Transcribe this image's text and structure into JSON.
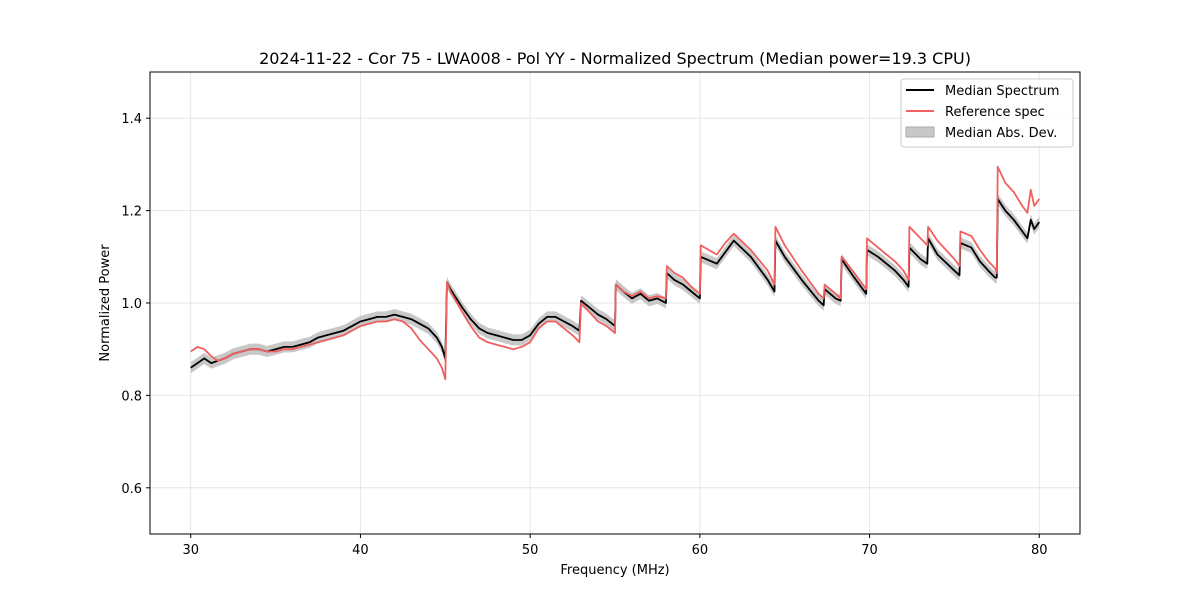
{
  "chart_data": {
    "type": "line",
    "title": "2024-11-22 - Cor 75 - LWA008 - Pol YY - Normalized Spectrum (Median power=19.3 CPU)",
    "xlabel": "Frequency (MHz)",
    "ylabel": "Normalized Power",
    "xlim": [
      27.6,
      82.4
    ],
    "ylim": [
      0.5,
      1.5
    ],
    "xticks": [
      30,
      40,
      50,
      60,
      70,
      80
    ],
    "yticks": [
      0.6,
      0.8,
      1.0,
      1.2,
      1.4
    ],
    "xtick_labels": [
      "30",
      "40",
      "50",
      "60",
      "70",
      "80"
    ],
    "ytick_labels": [
      "0.6",
      "0.8",
      "1.0",
      "1.2",
      "1.4"
    ],
    "grid": true,
    "legend_position": "top-right",
    "legend": {
      "median": "Median Spectrum",
      "reference": "Reference spec",
      "mad": "Median Abs. Dev."
    },
    "colors": {
      "median": "#000000",
      "reference": "#f06060",
      "mad_fill": "#c8c8c8",
      "grid": "#e6e6e6"
    },
    "series": [
      {
        "name": "Median Spectrum",
        "x": [
          30.0,
          30.4,
          30.8,
          31.2,
          31.6,
          32.0,
          32.5,
          33.0,
          33.5,
          34.0,
          34.5,
          35.0,
          35.5,
          36.0,
          36.5,
          37.0,
          37.5,
          38.0,
          38.5,
          39.0,
          39.5,
          40.0,
          40.5,
          41.0,
          41.5,
          42.0,
          42.5,
          43.0,
          43.5,
          44.0,
          44.5,
          44.8,
          45.0,
          45.1,
          45.3,
          46.0,
          46.5,
          47.0,
          47.5,
          48.0,
          48.5,
          49.0,
          49.5,
          50.0,
          50.5,
          51.0,
          51.5,
          52.0,
          52.5,
          52.9,
          53.0,
          53.5,
          54.0,
          54.5,
          55.0,
          55.05,
          55.5,
          56.0,
          56.5,
          57.0,
          57.5,
          58.0,
          58.05,
          58.5,
          59.0,
          59.5,
          60.0,
          60.05,
          61.0,
          61.5,
          62.0,
          63.0,
          64.0,
          64.4,
          64.45,
          65.0,
          66.0,
          67.0,
          67.3,
          67.35,
          68.0,
          68.3,
          68.35,
          69.0,
          69.8,
          69.85,
          70.5,
          71.0,
          71.5,
          72.0,
          72.3,
          72.35,
          73.0,
          73.4,
          73.45,
          74.0,
          75.0,
          75.3,
          75.35,
          76.0,
          76.5,
          77.0,
          77.4,
          77.5,
          77.55,
          78.0,
          78.5,
          79.0,
          79.3,
          79.5,
          79.7,
          80.0
        ],
        "values": [
          0.86,
          0.87,
          0.88,
          0.87,
          0.875,
          0.88,
          0.89,
          0.895,
          0.9,
          0.9,
          0.895,
          0.9,
          0.905,
          0.905,
          0.91,
          0.915,
          0.925,
          0.93,
          0.935,
          0.94,
          0.95,
          0.96,
          0.965,
          0.97,
          0.97,
          0.975,
          0.97,
          0.965,
          0.955,
          0.945,
          0.925,
          0.905,
          0.88,
          1.045,
          1.03,
          0.99,
          0.965,
          0.945,
          0.935,
          0.93,
          0.925,
          0.92,
          0.92,
          0.93,
          0.955,
          0.97,
          0.97,
          0.96,
          0.95,
          0.94,
          1.005,
          0.99,
          0.975,
          0.965,
          0.95,
          1.04,
          1.025,
          1.01,
          1.02,
          1.005,
          1.01,
          1.0,
          1.065,
          1.05,
          1.04,
          1.025,
          1.01,
          1.1,
          1.085,
          1.11,
          1.135,
          1.1,
          1.05,
          1.025,
          1.135,
          1.1,
          1.05,
          1.005,
          0.995,
          1.03,
          1.01,
          1.005,
          1.095,
          1.06,
          1.02,
          1.115,
          1.1,
          1.085,
          1.07,
          1.05,
          1.035,
          1.12,
          1.095,
          1.085,
          1.14,
          1.105,
          1.07,
          1.06,
          1.13,
          1.12,
          1.09,
          1.07,
          1.055,
          1.055,
          1.225,
          1.2,
          1.18,
          1.155,
          1.14,
          1.18,
          1.16,
          1.175
        ],
        "mad": 0.012
      },
      {
        "name": "Reference spec",
        "x": [
          30.0,
          30.4,
          30.8,
          31.2,
          31.6,
          32.0,
          32.5,
          33.0,
          33.5,
          34.0,
          34.5,
          35.0,
          35.5,
          36.0,
          36.5,
          37.0,
          37.5,
          38.0,
          38.5,
          39.0,
          39.5,
          40.0,
          40.5,
          41.0,
          41.5,
          42.0,
          42.5,
          43.0,
          43.5,
          44.0,
          44.5,
          44.8,
          45.0,
          45.1,
          45.3,
          46.0,
          46.5,
          47.0,
          47.5,
          48.0,
          48.5,
          49.0,
          49.5,
          50.0,
          50.5,
          51.0,
          51.5,
          52.0,
          52.5,
          52.9,
          53.0,
          53.5,
          54.0,
          54.5,
          55.0,
          55.05,
          55.5,
          56.0,
          56.5,
          57.0,
          57.5,
          58.0,
          58.05,
          58.5,
          59.0,
          59.5,
          60.0,
          60.05,
          61.0,
          61.5,
          62.0,
          63.0,
          64.0,
          64.4,
          64.45,
          65.0,
          66.0,
          67.0,
          67.3,
          67.35,
          68.0,
          68.3,
          68.35,
          69.0,
          69.8,
          69.85,
          70.5,
          71.0,
          71.5,
          72.0,
          72.3,
          72.35,
          73.0,
          73.4,
          73.45,
          74.0,
          75.0,
          75.3,
          75.35,
          76.0,
          76.5,
          77.0,
          77.4,
          77.5,
          77.55,
          78.0,
          78.5,
          79.0,
          79.3,
          79.5,
          79.7,
          80.0
        ],
        "values": [
          0.895,
          0.905,
          0.9,
          0.885,
          0.875,
          0.88,
          0.89,
          0.895,
          0.9,
          0.9,
          0.895,
          0.895,
          0.9,
          0.9,
          0.905,
          0.91,
          0.915,
          0.92,
          0.925,
          0.93,
          0.94,
          0.95,
          0.955,
          0.96,
          0.96,
          0.965,
          0.96,
          0.945,
          0.92,
          0.9,
          0.88,
          0.86,
          0.835,
          1.045,
          1.025,
          0.98,
          0.95,
          0.925,
          0.915,
          0.91,
          0.905,
          0.9,
          0.905,
          0.915,
          0.945,
          0.96,
          0.96,
          0.945,
          0.93,
          0.915,
          1.0,
          0.98,
          0.96,
          0.95,
          0.935,
          1.04,
          1.025,
          1.015,
          1.025,
          1.01,
          1.015,
          1.01,
          1.08,
          1.065,
          1.055,
          1.035,
          1.02,
          1.125,
          1.105,
          1.13,
          1.15,
          1.115,
          1.07,
          1.04,
          1.165,
          1.125,
          1.07,
          1.02,
          1.01,
          1.04,
          1.02,
          1.01,
          1.1,
          1.07,
          1.03,
          1.14,
          1.12,
          1.105,
          1.09,
          1.07,
          1.05,
          1.165,
          1.14,
          1.125,
          1.165,
          1.135,
          1.095,
          1.08,
          1.155,
          1.145,
          1.115,
          1.09,
          1.075,
          1.065,
          1.295,
          1.26,
          1.24,
          1.21,
          1.195,
          1.245,
          1.21,
          1.225
        ]
      }
    ]
  }
}
